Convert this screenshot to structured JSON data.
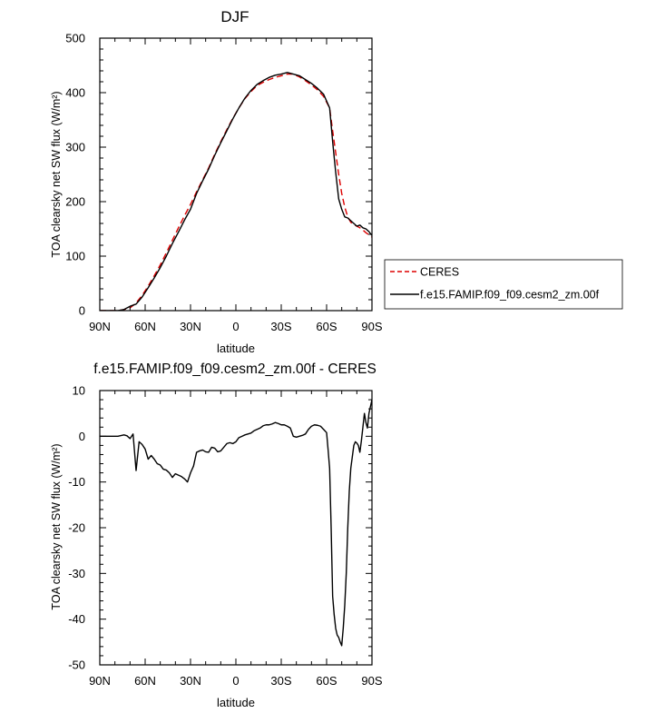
{
  "chart_data": [
    {
      "type": "line",
      "title": "DJF",
      "xlabel": "latitude",
      "ylabel": "TOA clearsky net SW flux (W/m²)",
      "xlim": [
        -90,
        90
      ],
      "ylim": [
        0,
        500
      ],
      "xticks": [
        -90,
        -60,
        -30,
        0,
        30,
        60,
        90
      ],
      "xtick_labels": [
        "90N",
        "60N",
        "30N",
        "0",
        "30S",
        "60S",
        "90S"
      ],
      "yticks": [
        0,
        100,
        200,
        300,
        400,
        500
      ],
      "ytick_labels": [
        "0",
        "100",
        "200",
        "300",
        "400",
        "500"
      ],
      "legend": {
        "placement": "outside-right"
      },
      "series": [
        {
          "name": "CERES",
          "color": "#dd0000",
          "style": "dashed",
          "x": [
            -90,
            -84,
            -78,
            -74,
            -70,
            -66,
            -62,
            -58,
            -54,
            -50,
            -46,
            -42,
            -38,
            -34,
            -30,
            -26,
            -22,
            -18,
            -14,
            -10,
            -6,
            -2,
            2,
            6,
            10,
            14,
            18,
            22,
            26,
            30,
            34,
            38,
            42,
            46,
            50,
            54,
            58,
            62,
            64,
            66,
            68,
            70,
            72,
            74,
            76,
            78,
            80,
            82,
            84,
            86,
            88,
            90
          ],
          "y": [
            0,
            0,
            0,
            2,
            5,
            14,
            28,
            45,
            64,
            84,
            106,
            129,
            152,
            174,
            195,
            218,
            240,
            262,
            287,
            310,
            332,
            353,
            372,
            389,
            402,
            413,
            419,
            424,
            428,
            431,
            434,
            434,
            429,
            422,
            414,
            405,
            393,
            372,
            330,
            290,
            250,
            215,
            190,
            172,
            162,
            158,
            155,
            152,
            148,
            143,
            139,
            135
          ]
        },
        {
          "name": "f.e15.FAMIP.f09_f09.cesm2_zm.00f",
          "color": "#000000",
          "style": "solid",
          "x": [
            -90,
            -84,
            -78,
            -74,
            -70,
            -66,
            -62,
            -58,
            -54,
            -50,
            -46,
            -42,
            -38,
            -34,
            -30,
            -26,
            -22,
            -18,
            -14,
            -10,
            -6,
            -2,
            2,
            6,
            10,
            14,
            18,
            22,
            26,
            30,
            34,
            38,
            42,
            46,
            50,
            54,
            58,
            62,
            64,
            66,
            68,
            70,
            72,
            74,
            76,
            78,
            80,
            82,
            84,
            86,
            88,
            90
          ],
          "y": [
            0,
            0,
            0,
            2,
            8,
            12,
            25,
            42,
            60,
            79,
            100,
            123,
            144,
            166,
            186,
            215,
            238,
            260,
            285,
            308,
            330,
            352,
            372,
            390,
            404,
            415,
            422,
            428,
            432,
            434,
            437,
            434,
            431,
            424,
            417,
            408,
            397,
            372,
            310,
            254,
            205,
            186,
            172,
            170,
            165,
            160,
            155,
            157,
            152,
            150,
            145,
            138
          ]
        }
      ]
    },
    {
      "type": "line",
      "title": "f.e15.FAMIP.f09_f09.cesm2_zm.00f - CERES",
      "xlabel": "latitude",
      "ylabel": "TOA clearsky net SW flux (W/m²)",
      "xlim": [
        -90,
        90
      ],
      "ylim": [
        -50,
        10
      ],
      "xticks": [
        -90,
        -60,
        -30,
        0,
        30,
        60,
        90
      ],
      "xtick_labels": [
        "90N",
        "60N",
        "30N",
        "0",
        "30S",
        "60S",
        "90S"
      ],
      "yticks": [
        -50,
        -40,
        -30,
        -20,
        -10,
        0,
        10
      ],
      "ytick_labels": [
        "-50",
        "-40",
        "-30",
        "-20",
        "-10",
        "0",
        "10"
      ],
      "series": [
        {
          "color": "#000000",
          "style": "solid",
          "x": [
            -90,
            -84,
            -78,
            -74,
            -72,
            -70,
            -68,
            -66,
            -64,
            -62,
            -60,
            -58,
            -56,
            -54,
            -52,
            -50,
            -48,
            -46,
            -44,
            -42,
            -40,
            -38,
            -36,
            -34,
            -32,
            -30,
            -28,
            -26,
            -24,
            -22,
            -20,
            -18,
            -16,
            -14,
            -12,
            -10,
            -8,
            -6,
            -4,
            -2,
            0,
            2,
            4,
            6,
            8,
            10,
            12,
            14,
            16,
            18,
            20,
            22,
            24,
            26,
            28,
            30,
            32,
            34,
            36,
            38,
            40,
            42,
            44,
            46,
            48,
            50,
            52,
            54,
            56,
            58,
            60,
            61,
            62,
            63,
            64,
            65,
            66,
            67,
            68,
            69,
            70,
            71,
            72,
            73,
            74,
            75,
            76,
            77,
            78,
            79,
            80,
            81,
            82,
            83,
            84,
            85,
            86,
            87,
            88,
            89,
            90
          ],
          "y": [
            0,
            0,
            0,
            0.3,
            0.1,
            -0.5,
            0.5,
            -7.5,
            -1.2,
            -1.8,
            -2.8,
            -5,
            -4.2,
            -5,
            -6,
            -6.3,
            -7.2,
            -7.4,
            -8,
            -9,
            -8.2,
            -8.5,
            -8.8,
            -9.3,
            -10,
            -8,
            -6.5,
            -3.5,
            -3.2,
            -3,
            -3.4,
            -3.5,
            -2.4,
            -2.6,
            -3.4,
            -3.2,
            -2.4,
            -1.6,
            -1.4,
            -1.6,
            -1.2,
            -0.3,
            0,
            0.3,
            0.5,
            0.7,
            1.2,
            1.5,
            1.8,
            2.3,
            2.5,
            2.5,
            2.7,
            3,
            2.8,
            2.5,
            2.5,
            2.2,
            1.8,
            0,
            -0.2,
            0,
            0.2,
            0.5,
            1.5,
            2.2,
            2.5,
            2.4,
            2.2,
            1.5,
            0.8,
            -3,
            -7,
            -20,
            -35,
            -39,
            -42,
            -43.5,
            -44,
            -45,
            -45.8,
            -42,
            -37,
            -30,
            -20,
            -12,
            -7,
            -4.5,
            -2,
            -1.2,
            -1.5,
            -2,
            -3.5,
            -1,
            2,
            5,
            3,
            1.8,
            5,
            6.5,
            8
          ]
        }
      ]
    }
  ]
}
